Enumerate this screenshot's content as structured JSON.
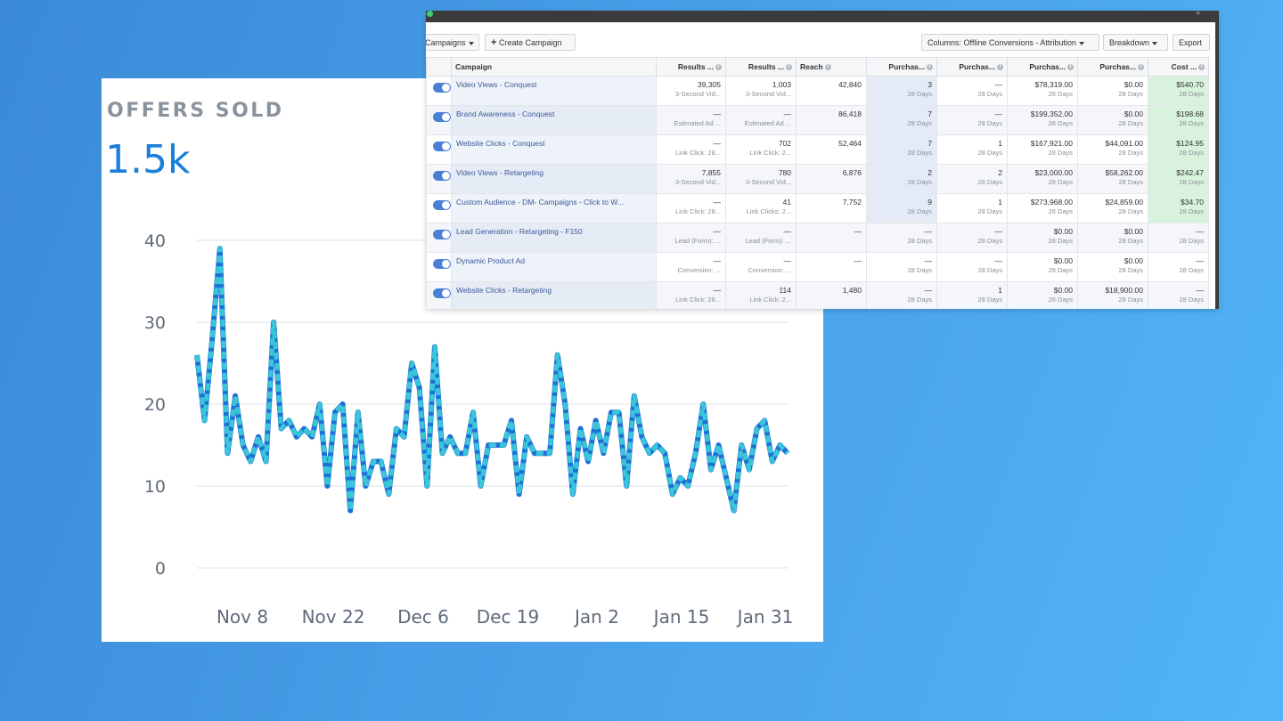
{
  "chart_card": {
    "title": "OFFERS SOLD",
    "total": "1.5k"
  },
  "chart_data": {
    "type": "line",
    "title": "OFFERS SOLD",
    "ylim": [
      0,
      40
    ],
    "yticks": [
      "0",
      "10",
      "20",
      "30",
      "40"
    ],
    "xticks": [
      "Nov 8",
      "Nov 22",
      "Dec 6",
      "Dec 19",
      "Jan 2",
      "Jan 15",
      "Jan 31"
    ],
    "grid": true,
    "colors": {
      "line_primary": "#1f6fd6",
      "line_secondary": "#38c6d8"
    },
    "series": [
      {
        "values": [
          26,
          18,
          28,
          39,
          14,
          21,
          15,
          13,
          16,
          13,
          30,
          17,
          18,
          16,
          17,
          16,
          20,
          10,
          19,
          20,
          7,
          19,
          10,
          13,
          13,
          9,
          17,
          16,
          25,
          22,
          10,
          27,
          14,
          16,
          14,
          14,
          19,
          10,
          15,
          15,
          15,
          18,
          9,
          16,
          14,
          14,
          14,
          26,
          20,
          9,
          17,
          13,
          18,
          14,
          19,
          19,
          10,
          21,
          16,
          14,
          15,
          14,
          9,
          11,
          10,
          14,
          20,
          12,
          15,
          11,
          7,
          15,
          12,
          17,
          18,
          13,
          15,
          14
        ]
      }
    ]
  },
  "ads_manager": {
    "toolbar": {
      "campaigns_label": "Campaigns",
      "create_label": "Create Campaign",
      "columns_label": "Columns: Offline Conversions - Attribution",
      "breakdown_label": "Breakdown",
      "export_label": "Export"
    },
    "headers": [
      "Campaign",
      "Results ...",
      "Results ...",
      "Reach",
      "Purchas...",
      "Purchas...",
      "Purchas...",
      "Purchas...",
      "Cost ..."
    ],
    "rows": [
      {
        "name": "Video Views - Conquest",
        "r1": "39,305",
        "r1s": "3-Second Vid...",
        "r2": "1,003",
        "r2s": "3-Second Vid...",
        "reach": "42,840",
        "p1": "3",
        "p2": "—",
        "p3": "$78,319.00",
        "p4": "$0.00",
        "cost": "$540.70"
      },
      {
        "name": "Brand Awareness - Conquest",
        "r1": "—",
        "r1s": "Estimated Ad ...",
        "r2": "—",
        "r2s": "Estimated Ad ...",
        "reach": "86,418",
        "p1": "7",
        "p2": "—",
        "p3": "$199,352.00",
        "p4": "$0.00",
        "cost": "$198.68"
      },
      {
        "name": "Website Clicks - Conquest",
        "r1": "—",
        "r1s": "Link Click: 28...",
        "r2": "702",
        "r2s": "Link Click: 2...",
        "reach": "52,464",
        "p1": "7",
        "p2": "1",
        "p3": "$167,921.00",
        "p4": "$44,091.00",
        "cost": "$124.95"
      },
      {
        "name": "Video Views - Retargeting",
        "r1": "7,855",
        "r1s": "3-Second Vid...",
        "r2": "780",
        "r2s": "3-Second Vid...",
        "reach": "6,876",
        "p1": "2",
        "p2": "2",
        "p3": "$23,000.00",
        "p4": "$58,262.00",
        "cost": "$242.47"
      },
      {
        "name": "Custom Audience - DM- Campaigns - Click to W...",
        "r1": "—",
        "r1s": "Link Click: 28...",
        "r2": "41",
        "r2s": "Link Clicks: 2...",
        "reach": "7,752",
        "p1": "9",
        "p2": "1",
        "p3": "$273,968.00",
        "p4": "$24,859.00",
        "cost": "$34.70"
      },
      {
        "name": "Lead Generation - Retargeting - F150",
        "r1": "—",
        "r1s": "Lead (Form): ...",
        "r2": "—",
        "r2s": "Lead (Form): ...",
        "reach": "—",
        "p1": "—",
        "p2": "—",
        "p3": "$0.00",
        "p4": "$0.00",
        "cost": "—"
      },
      {
        "name": "Dynamic Product Ad",
        "r1": "—",
        "r1s": "Conversion: ...",
        "r2": "—",
        "r2s": "Conversion: ...",
        "reach": "—",
        "p1": "—",
        "p2": "—",
        "p3": "$0.00",
        "p4": "$0.00",
        "cost": "—"
      },
      {
        "name": "Website Clicks - Retargeting",
        "r1": "—",
        "r1s": "Link Click: 28...",
        "r2": "114",
        "r2s": "Link Click: 2...",
        "reach": "1,480",
        "p1": "—",
        "p2": "1",
        "p3": "$0.00",
        "p4": "$18,900.00",
        "cost": "—"
      }
    ],
    "days_label": "28 Days"
  }
}
